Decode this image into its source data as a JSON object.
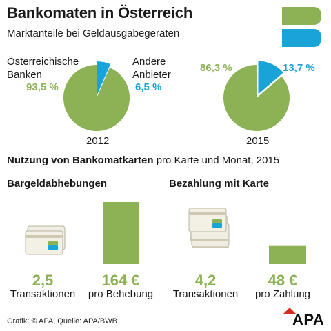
{
  "header": {
    "title": "Bankomaten in Österreich",
    "subtitle": "Marktanteile bei Geldausgabegeräten"
  },
  "colors": {
    "green": "#8db255",
    "blue": "#1aa3d7"
  },
  "chart_data": [
    {
      "type": "pie",
      "label": "2012",
      "categories": [
        "Österreichische Banken",
        "Andere Anbieter"
      ],
      "values": [
        93.5,
        6.5
      ],
      "value_labels": [
        "93,5 %",
        "6,5 %"
      ]
    },
    {
      "type": "pie",
      "label": "2015",
      "categories": [
        "Österreichische Banken",
        "Andere Anbieter"
      ],
      "values": [
        86.3,
        13.7
      ],
      "value_labels": [
        "86,3 %",
        "13,7 %"
      ]
    },
    {
      "type": "bar",
      "title": "Bargeldabhebungen",
      "categories": [
        "pro Behebung"
      ],
      "values": [
        164
      ],
      "value_labels": [
        "164 €"
      ],
      "transactions": "2,5",
      "transactions_label": "Transaktionen"
    },
    {
      "type": "bar",
      "title": "Bezahlung mit Karte",
      "categories": [
        "pro Zahlung"
      ],
      "values": [
        48
      ],
      "value_labels": [
        "48 €"
      ],
      "transactions": "4,2",
      "transactions_label": "Transaktionen"
    }
  ],
  "legend": {
    "austrian_line1": "Österreichische",
    "austrian_line2": "Banken",
    "other_line1": "Andere",
    "other_line2": "Anbieter"
  },
  "usage": {
    "bold": "Nutzung von Bankomatkarten",
    "rest": " pro Karte und Monat, 2015"
  },
  "icons": {
    "logo": "bankomat-b-logo-icon",
    "card": "bank-card-icon"
  },
  "footer": {
    "credit": "Grafik: © APA, Quelle: APA/BWB",
    "logo_text": "APA"
  }
}
